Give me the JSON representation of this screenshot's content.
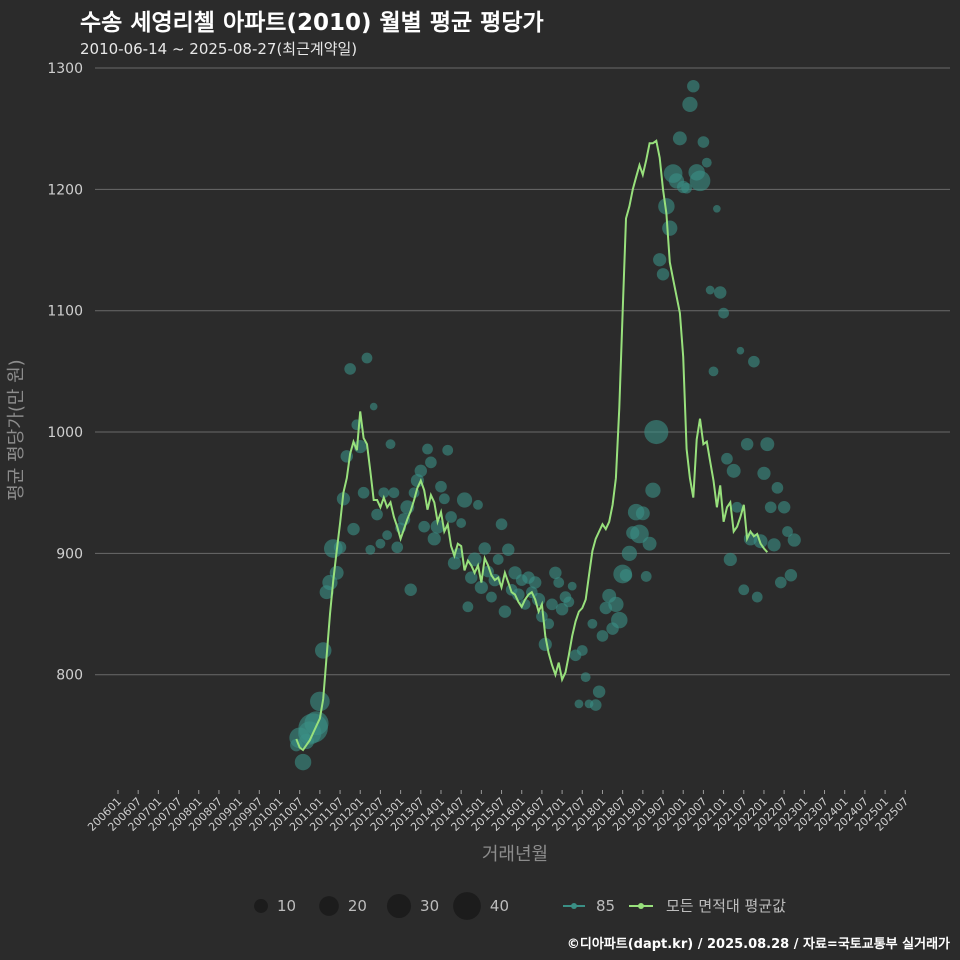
{
  "chart_data": {
    "type": "scatter",
    "title": "수송 세영리첼 아파트(2010) 월별 평균 평당가",
    "subtitle": "2010-06-14 ~ 2025-08-27(최근계약일)",
    "xlabel": "거래년월",
    "ylabel": "평균 평당가(만 원)",
    "ylim": [
      705,
      1300
    ],
    "yticks": [
      800,
      900,
      1000,
      1100,
      1200,
      1300
    ],
    "grid": true,
    "x_start": "2006-01",
    "x_end": "2025-09",
    "x_tick_labels": [
      "200601",
      "200607",
      "200701",
      "200707",
      "200801",
      "200807",
      "200901",
      "200907",
      "201001",
      "201007",
      "201101",
      "201107",
      "201201",
      "201207",
      "201301",
      "201307",
      "201401",
      "201407",
      "201501",
      "201507",
      "201601",
      "201607",
      "201701",
      "201707",
      "201801",
      "201807",
      "201901",
      "201907",
      "202001",
      "202007",
      "202101",
      "202107",
      "202201",
      "202207",
      "202301",
      "202307",
      "202401",
      "202407",
      "202501",
      "202507"
    ],
    "size_legend": {
      "items": [
        {
          "label": "10",
          "value": 10
        },
        {
          "label": "20",
          "value": 20
        },
        {
          "label": "30",
          "value": 30
        },
        {
          "label": "40",
          "value": 40
        }
      ]
    },
    "series": [
      {
        "name": "85",
        "kind": "scatter",
        "color": "#3a8f85",
        "points": [
          {
            "x": "2010-06",
            "y": 742,
            "n": 8
          },
          {
            "x": "2010-07",
            "y": 748,
            "n": 22
          },
          {
            "x": "2010-08",
            "y": 728,
            "n": 14
          },
          {
            "x": "2010-09",
            "y": 745,
            "n": 12
          },
          {
            "x": "2010-10",
            "y": 752,
            "n": 28
          },
          {
            "x": "2010-11",
            "y": 756,
            "n": 45
          },
          {
            "x": "2010-12",
            "y": 760,
            "n": 30
          },
          {
            "x": "2011-01",
            "y": 778,
            "n": 20
          },
          {
            "x": "2011-02",
            "y": 820,
            "n": 14
          },
          {
            "x": "2011-03",
            "y": 868,
            "n": 10
          },
          {
            "x": "2011-04",
            "y": 876,
            "n": 12
          },
          {
            "x": "2011-05",
            "y": 904,
            "n": 18
          },
          {
            "x": "2011-06",
            "y": 884,
            "n": 10
          },
          {
            "x": "2011-07",
            "y": 905,
            "n": 8
          },
          {
            "x": "2011-08",
            "y": 945,
            "n": 9
          },
          {
            "x": "2011-09",
            "y": 980,
            "n": 8
          },
          {
            "x": "2011-10",
            "y": 1052,
            "n": 7
          },
          {
            "x": "2011-11",
            "y": 920,
            "n": 8
          },
          {
            "x": "2011-12",
            "y": 1006,
            "n": 6
          },
          {
            "x": "2012-01",
            "y": 988,
            "n": 9
          },
          {
            "x": "2012-02",
            "y": 950,
            "n": 7
          },
          {
            "x": "2012-03",
            "y": 1061,
            "n": 6
          },
          {
            "x": "2012-04",
            "y": 903,
            "n": 5
          },
          {
            "x": "2012-05",
            "y": 1021,
            "n": 3
          },
          {
            "x": "2012-06",
            "y": 932,
            "n": 7
          },
          {
            "x": "2012-07",
            "y": 908,
            "n": 5
          },
          {
            "x": "2012-08",
            "y": 950,
            "n": 6
          },
          {
            "x": "2012-09",
            "y": 915,
            "n": 5
          },
          {
            "x": "2012-10",
            "y": 990,
            "n": 5
          },
          {
            "x": "2012-11",
            "y": 950,
            "n": 6
          },
          {
            "x": "2012-12",
            "y": 905,
            "n": 7
          },
          {
            "x": "2013-01",
            "y": 921,
            "n": 6
          },
          {
            "x": "2013-02",
            "y": 928,
            "n": 8
          },
          {
            "x": "2013-03",
            "y": 938,
            "n": 10
          },
          {
            "x": "2013-04",
            "y": 870,
            "n": 8
          },
          {
            "x": "2013-05",
            "y": 950,
            "n": 6
          },
          {
            "x": "2013-06",
            "y": 960,
            "n": 9
          },
          {
            "x": "2013-07",
            "y": 968,
            "n": 8
          },
          {
            "x": "2013-08",
            "y": 922,
            "n": 7
          },
          {
            "x": "2013-09",
            "y": 986,
            "n": 6
          },
          {
            "x": "2013-10",
            "y": 975,
            "n": 7
          },
          {
            "x": "2013-11",
            "y": 912,
            "n": 9
          },
          {
            "x": "2013-12",
            "y": 922,
            "n": 10
          },
          {
            "x": "2014-01",
            "y": 955,
            "n": 7
          },
          {
            "x": "2014-02",
            "y": 945,
            "n": 6
          },
          {
            "x": "2014-03",
            "y": 985,
            "n": 6
          },
          {
            "x": "2014-04",
            "y": 930,
            "n": 7
          },
          {
            "x": "2014-05",
            "y": 892,
            "n": 9
          },
          {
            "x": "2014-06",
            "y": 900,
            "n": 6
          },
          {
            "x": "2014-07",
            "y": 925,
            "n": 5
          },
          {
            "x": "2014-08",
            "y": 944,
            "n": 12
          },
          {
            "x": "2014-09",
            "y": 856,
            "n": 6
          },
          {
            "x": "2014-10",
            "y": 880,
            "n": 8
          },
          {
            "x": "2014-11",
            "y": 895,
            "n": 10
          },
          {
            "x": "2014-12",
            "y": 940,
            "n": 5
          },
          {
            "x": "2015-01",
            "y": 872,
            "n": 9
          },
          {
            "x": "2015-02",
            "y": 904,
            "n": 8
          },
          {
            "x": "2015-03",
            "y": 885,
            "n": 7
          },
          {
            "x": "2015-04",
            "y": 864,
            "n": 6
          },
          {
            "x": "2015-05",
            "y": 878,
            "n": 8
          },
          {
            "x": "2015-06",
            "y": 895,
            "n": 6
          },
          {
            "x": "2015-07",
            "y": 924,
            "n": 7
          },
          {
            "x": "2015-08",
            "y": 852,
            "n": 8
          },
          {
            "x": "2015-09",
            "y": 903,
            "n": 8
          },
          {
            "x": "2015-10",
            "y": 870,
            "n": 7
          },
          {
            "x": "2015-11",
            "y": 884,
            "n": 9
          },
          {
            "x": "2015-12",
            "y": 866,
            "n": 8
          },
          {
            "x": "2016-01",
            "y": 878,
            "n": 7
          },
          {
            "x": "2016-02",
            "y": 858,
            "n": 6
          },
          {
            "x": "2016-03",
            "y": 880,
            "n": 8
          },
          {
            "x": "2016-04",
            "y": 868,
            "n": 7
          },
          {
            "x": "2016-05",
            "y": 876,
            "n": 8
          },
          {
            "x": "2016-06",
            "y": 862,
            "n": 9
          },
          {
            "x": "2016-07",
            "y": 848,
            "n": 7
          },
          {
            "x": "2016-08",
            "y": 825,
            "n": 9
          },
          {
            "x": "2016-09",
            "y": 842,
            "n": 6
          },
          {
            "x": "2016-10",
            "y": 858,
            "n": 7
          },
          {
            "x": "2016-11",
            "y": 884,
            "n": 8
          },
          {
            "x": "2016-12",
            "y": 876,
            "n": 6
          },
          {
            "x": "2017-01",
            "y": 854,
            "n": 8
          },
          {
            "x": "2017-02",
            "y": 864,
            "n": 7
          },
          {
            "x": "2017-03",
            "y": 860,
            "n": 6
          },
          {
            "x": "2017-04",
            "y": 873,
            "n": 4
          },
          {
            "x": "2017-05",
            "y": 816,
            "n": 7
          },
          {
            "x": "2017-06",
            "y": 776,
            "n": 4
          },
          {
            "x": "2017-07",
            "y": 820,
            "n": 6
          },
          {
            "x": "2017-08",
            "y": 798,
            "n": 5
          },
          {
            "x": "2017-09",
            "y": 776,
            "n": 4
          },
          {
            "x": "2017-10",
            "y": 842,
            "n": 5
          },
          {
            "x": "2017-11",
            "y": 775,
            "n": 7
          },
          {
            "x": "2017-12",
            "y": 786,
            "n": 8
          },
          {
            "x": "2018-01",
            "y": 832,
            "n": 7
          },
          {
            "x": "2018-02",
            "y": 855,
            "n": 8
          },
          {
            "x": "2018-03",
            "y": 865,
            "n": 10
          },
          {
            "x": "2018-04",
            "y": 838,
            "n": 8
          },
          {
            "x": "2018-05",
            "y": 858,
            "n": 12
          },
          {
            "x": "2018-06",
            "y": 845,
            "n": 14
          },
          {
            "x": "2018-07",
            "y": 883,
            "n": 18
          },
          {
            "x": "2018-08",
            "y": 882,
            "n": 8
          },
          {
            "x": "2018-09",
            "y": 900,
            "n": 12
          },
          {
            "x": "2018-10",
            "y": 917,
            "n": 9
          },
          {
            "x": "2018-11",
            "y": 934,
            "n": 14
          },
          {
            "x": "2018-12",
            "y": 916,
            "n": 18
          },
          {
            "x": "2019-01",
            "y": 933,
            "n": 10
          },
          {
            "x": "2019-02",
            "y": 881,
            "n": 6
          },
          {
            "x": "2019-03",
            "y": 908,
            "n": 10
          },
          {
            "x": "2019-04",
            "y": 952,
            "n": 12
          },
          {
            "x": "2019-05",
            "y": 1000,
            "n": 30
          },
          {
            "x": "2019-06",
            "y": 1142,
            "n": 9
          },
          {
            "x": "2019-07",
            "y": 1130,
            "n": 8
          },
          {
            "x": "2019-08",
            "y": 1186,
            "n": 14
          },
          {
            "x": "2019-09",
            "y": 1168,
            "n": 12
          },
          {
            "x": "2019-10",
            "y": 1213,
            "n": 18
          },
          {
            "x": "2019-11",
            "y": 1207,
            "n": 12
          },
          {
            "x": "2019-12",
            "y": 1242,
            "n": 10
          },
          {
            "x": "2020-01",
            "y": 1202,
            "n": 8
          },
          {
            "x": "2020-02",
            "y": 1201,
            "n": 6
          },
          {
            "x": "2020-03",
            "y": 1270,
            "n": 12
          },
          {
            "x": "2020-04",
            "y": 1285,
            "n": 8
          },
          {
            "x": "2020-05",
            "y": 1214,
            "n": 14
          },
          {
            "x": "2020-06",
            "y": 1207,
            "n": 22
          },
          {
            "x": "2020-07",
            "y": 1239,
            "n": 7
          },
          {
            "x": "2020-08",
            "y": 1222,
            "n": 5
          },
          {
            "x": "2020-09",
            "y": 1117,
            "n": 4
          },
          {
            "x": "2020-10",
            "y": 1050,
            "n": 5
          },
          {
            "x": "2020-11",
            "y": 1184,
            "n": 3
          },
          {
            "x": "2020-12",
            "y": 1115,
            "n": 8
          },
          {
            "x": "2021-01",
            "y": 1098,
            "n": 6
          },
          {
            "x": "2021-02",
            "y": 978,
            "n": 7
          },
          {
            "x": "2021-03",
            "y": 895,
            "n": 9
          },
          {
            "x": "2021-04",
            "y": 968,
            "n": 10
          },
          {
            "x": "2021-05",
            "y": 938,
            "n": 6
          },
          {
            "x": "2021-06",
            "y": 1067,
            "n": 3
          },
          {
            "x": "2021-07",
            "y": 870,
            "n": 6
          },
          {
            "x": "2021-08",
            "y": 990,
            "n": 8
          },
          {
            "x": "2021-09",
            "y": 912,
            "n": 9
          },
          {
            "x": "2021-10",
            "y": 1058,
            "n": 7
          },
          {
            "x": "2021-11",
            "y": 864,
            "n": 6
          },
          {
            "x": "2021-12",
            "y": 910,
            "n": 10
          },
          {
            "x": "2022-01",
            "y": 966,
            "n": 9
          },
          {
            "x": "2022-02",
            "y": 990,
            "n": 10
          },
          {
            "x": "2022-03",
            "y": 938,
            "n": 7
          },
          {
            "x": "2022-04",
            "y": 907,
            "n": 9
          },
          {
            "x": "2022-05",
            "y": 954,
            "n": 7
          },
          {
            "x": "2022-06",
            "y": 876,
            "n": 7
          },
          {
            "x": "2022-07",
            "y": 938,
            "n": 8
          },
          {
            "x": "2022-08",
            "y": 918,
            "n": 6
          },
          {
            "x": "2022-09",
            "y": 882,
            "n": 8
          },
          {
            "x": "2022-10",
            "y": 911,
            "n": 9
          }
        ]
      },
      {
        "name": "모든 면적대 평균값",
        "kind": "line",
        "color": "#98e07c",
        "values": [
          747,
          740,
          738,
          742,
          746,
          752,
          758,
          764,
          780,
          815,
          850,
          878,
          902,
          925,
          950,
          962,
          982,
          992,
          985,
          1017,
          995,
          990,
          968,
          944,
          944,
          938,
          946,
          938,
          942,
          930,
          922,
          912,
          920,
          928,
          935,
          944,
          954,
          960,
          952,
          936,
          948,
          942,
          926,
          934,
          918,
          924,
          906,
          898,
          908,
          906,
          886,
          894,
          890,
          884,
          890,
          876,
          896,
          890,
          882,
          878,
          880,
          872,
          884,
          876,
          868,
          866,
          860,
          856,
          862,
          866,
          868,
          862,
          852,
          858,
          832,
          818,
          808,
          800,
          810,
          796,
          802,
          816,
          832,
          844,
          852,
          855,
          862,
          882,
          902,
          912,
          918,
          924,
          920,
          926,
          940,
          962,
          1020,
          1100,
          1176,
          1186,
          1200,
          1210,
          1220,
          1212,
          1224,
          1238,
          1238,
          1240,
          1226,
          1200,
          1180,
          1140,
          1126,
          1112,
          1098,
          1062,
          986,
          962,
          946,
          994,
          1011,
          990,
          992,
          976,
          960,
          938,
          956,
          926,
          938,
          942,
          918,
          922,
          930,
          940,
          912,
          918,
          914,
          916,
          908,
          904,
          901
        ]
      }
    ],
    "line_start": "2010-06",
    "caption": "©디아파트(dapt.kr) / 2025.08.28 / 자료=국토교통부 실거래가"
  }
}
